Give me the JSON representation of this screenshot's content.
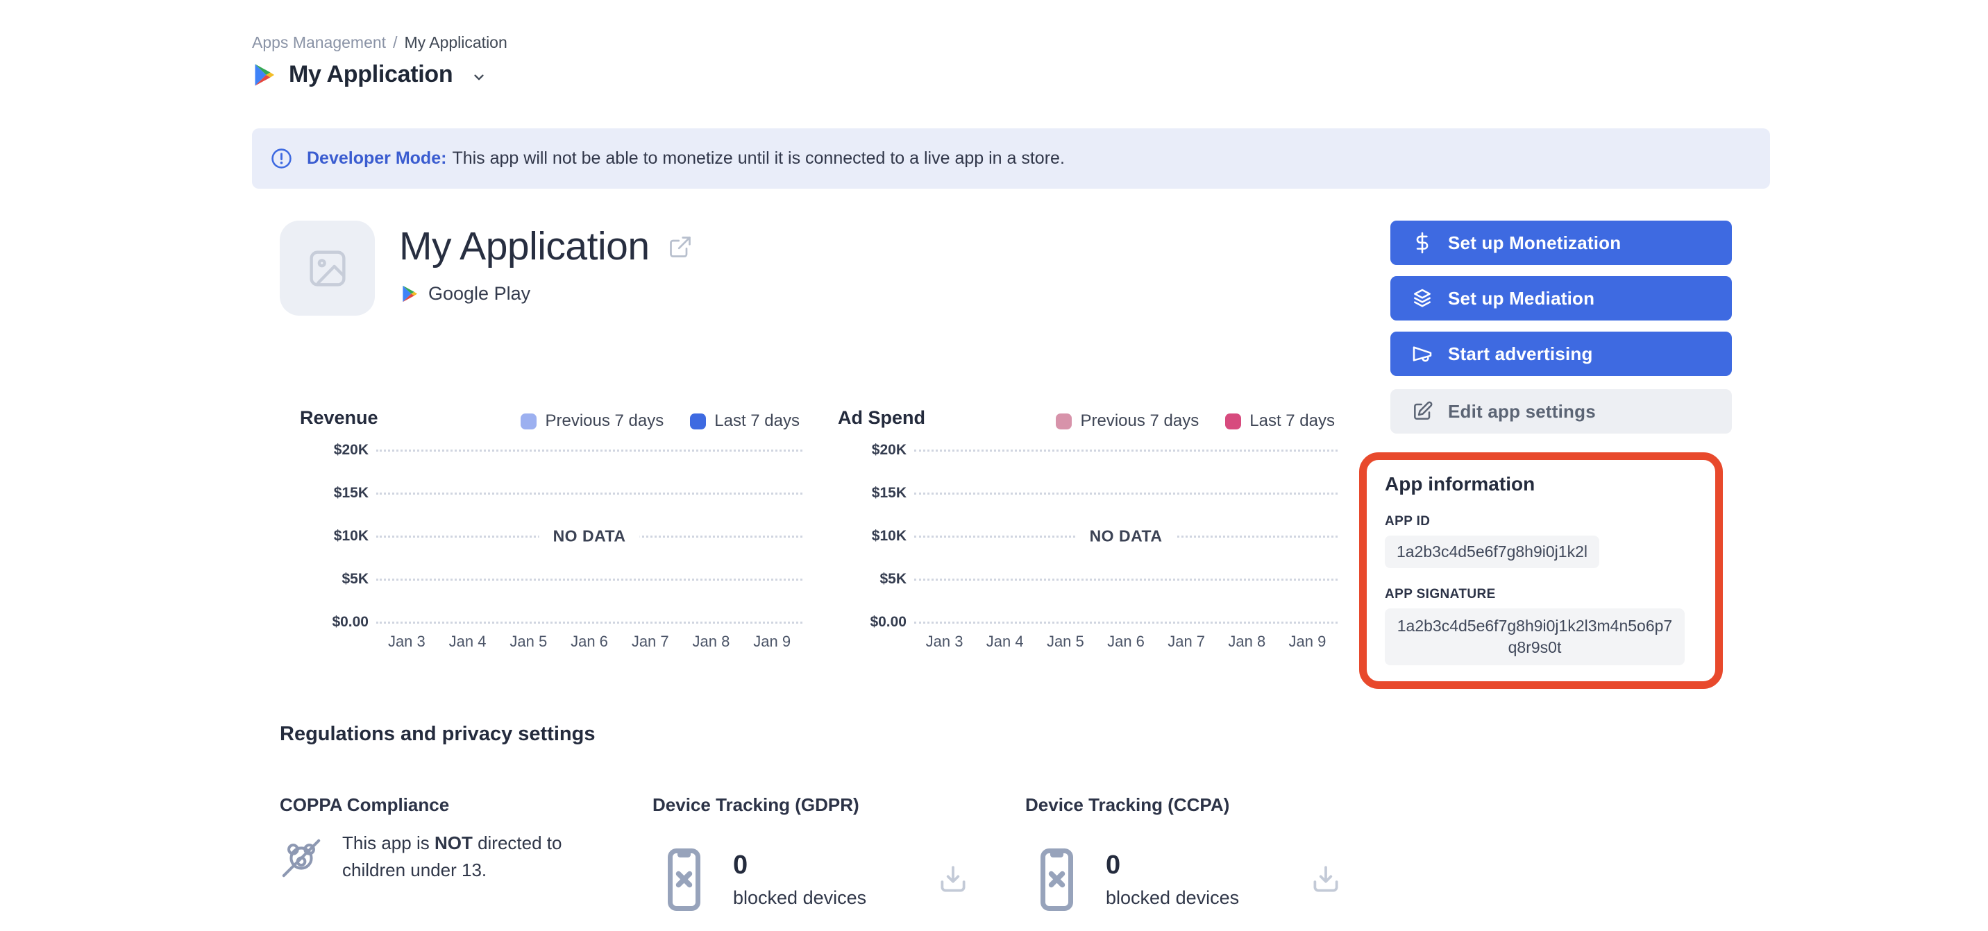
{
  "colors": {
    "primary_blue": "#3e6ae1",
    "banner_blue": "#3a5cd0",
    "highlight_red": "#e8492c",
    "banner_bg": "#e9edf9"
  },
  "breadcrumb": {
    "parent": "Apps Management",
    "separator": "/",
    "current": "My Application"
  },
  "page_header": {
    "title": "My Application"
  },
  "banner": {
    "title": "Developer Mode:",
    "message": "This app will not be able to monetize until it is connected to a live app in a store."
  },
  "app_header": {
    "name": "My Application",
    "store": "Google Play"
  },
  "actions": [
    {
      "label": "Set up Monetization"
    },
    {
      "label": "Set up Mediation"
    },
    {
      "label": "Start advertising"
    },
    {
      "label": "Edit app settings"
    }
  ],
  "chart_data": [
    {
      "type": "line",
      "title": "Revenue",
      "legend": [
        {
          "label": "Previous 7 days",
          "color": "#9cb0f0"
        },
        {
          "label": "Last 7 days",
          "color": "#3e6ae1"
        }
      ],
      "categories": [
        "Jan 3",
        "Jan 4",
        "Jan 5",
        "Jan 6",
        "Jan 7",
        "Jan 8",
        "Jan 9"
      ],
      "series": [],
      "no_data_label": "NO DATA",
      "y_ticks": [
        "$20K",
        "$15K",
        "$10K",
        "$5K",
        "$0.00"
      ],
      "ylim": [
        0,
        20000
      ],
      "grid": "dotted-horizontal",
      "legend_position": "top-right"
    },
    {
      "type": "line",
      "title": "Ad Spend",
      "legend": [
        {
          "label": "Previous 7 days",
          "color": "#d793aa"
        },
        {
          "label": "Last 7 days",
          "color": "#d74b7e"
        }
      ],
      "categories": [
        "Jan 3",
        "Jan 4",
        "Jan 5",
        "Jan 6",
        "Jan 7",
        "Jan 8",
        "Jan 9"
      ],
      "series": [],
      "no_data_label": "NO DATA",
      "y_ticks": [
        "$20K",
        "$15K",
        "$10K",
        "$5K",
        "$0.00"
      ],
      "ylim": [
        0,
        20000
      ],
      "grid": "dotted-horizontal",
      "legend_position": "top-right"
    }
  ],
  "app_information": {
    "title": "App information",
    "fields": [
      {
        "label": "APP ID",
        "value": "1a2b3c4d5e6f7g8h9i0j1k2l"
      },
      {
        "label": "APP SIGNATURE",
        "value": "1a2b3c4d5e6f7g8h9i0j1k2l3m4n5o6p7q8r9s0t"
      }
    ]
  },
  "regulations": {
    "title": "Regulations and privacy settings",
    "coppa": {
      "title": "COPPA Compliance",
      "text_prefix": "This app is ",
      "text_bold": "NOT",
      "text_suffix": " directed to children under 13."
    },
    "gdpr": {
      "title": "Device Tracking (GDPR)",
      "count": "0",
      "label": "blocked devices"
    },
    "ccpa": {
      "title": "Device Tracking (CCPA)",
      "count": "0",
      "label": "blocked devices"
    }
  }
}
